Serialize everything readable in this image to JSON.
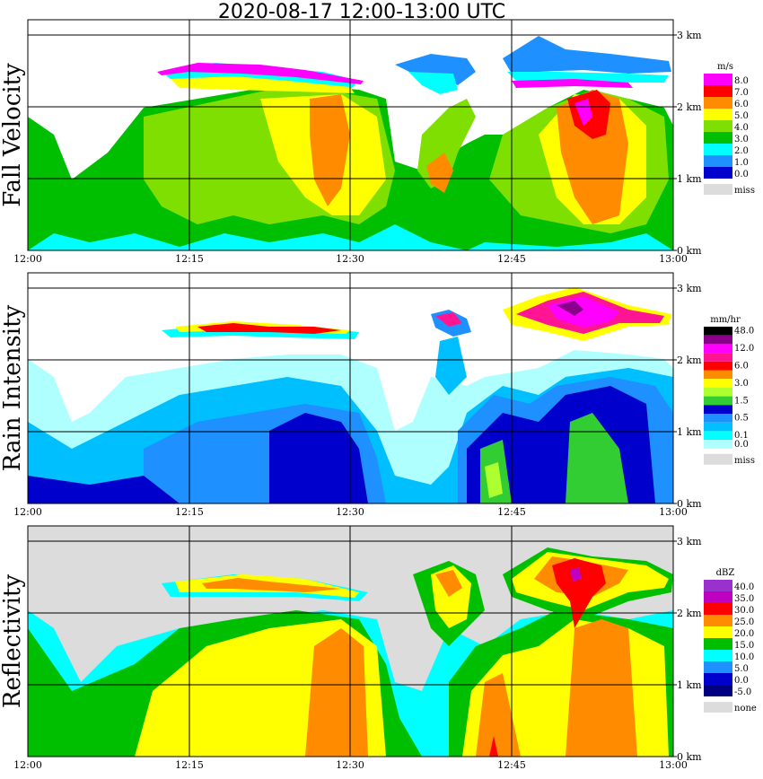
{
  "title": "2020-08-17   12:00-13:00 UTC",
  "chart_data": [
    {
      "type": "heatmap",
      "panel": "fall_velocity",
      "ylabel": "Fall Velocity",
      "unit": "m/s",
      "x_ticks": [
        "12:00",
        "12:15",
        "12:30",
        "12:45",
        "13:00"
      ],
      "y_ticks": [
        "0 km",
        "1 km",
        "2 km",
        "3 km"
      ],
      "xlim": [
        "12:00",
        "13:00"
      ],
      "ylim_km": [
        0,
        3.1
      ],
      "grid": true,
      "legend": [
        {
          "label": "8.0",
          "color": "#ff00ff"
        },
        {
          "label": "7.0",
          "color": "#ff0000"
        },
        {
          "label": "6.0",
          "color": "#ff8c00"
        },
        {
          "label": "5.0",
          "color": "#ffff00"
        },
        {
          "label": "4.0",
          "color": "#7fdf00"
        },
        {
          "label": "3.0",
          "color": "#00bf00"
        },
        {
          "label": "2.0",
          "color": "#00ffff"
        },
        {
          "label": "1.0",
          "color": "#1e90ff"
        },
        {
          "label": "0.0",
          "color": "#0000cc"
        },
        {
          "label": "miss",
          "color": "#dcdcdc"
        }
      ]
    },
    {
      "type": "heatmap",
      "panel": "rain_intensity",
      "ylabel": "Rain Intensity",
      "unit": "mm/hr",
      "x_ticks": [
        "12:00",
        "12:15",
        "12:30",
        "12:45",
        "13:00"
      ],
      "y_ticks": [
        "0 km",
        "1 km",
        "2 km",
        "3 km"
      ],
      "xlim": [
        "12:00",
        "13:00"
      ],
      "ylim_km": [
        0,
        3.1
      ],
      "grid": true,
      "legend": [
        {
          "label": "48.0",
          "color": "#000000"
        },
        {
          "label": "",
          "color": "#8b008b"
        },
        {
          "label": "12.0",
          "color": "#ff00ff"
        },
        {
          "label": "",
          "color": "#ff1493"
        },
        {
          "label": "6.0",
          "color": "#ff0000"
        },
        {
          "label": "",
          "color": "#ff8c00"
        },
        {
          "label": "3.0",
          "color": "#ffff00"
        },
        {
          "label": "",
          "color": "#adff2f"
        },
        {
          "label": "1.5",
          "color": "#32cd32"
        },
        {
          "label": "",
          "color": "#0000cd"
        },
        {
          "label": "0.5",
          "color": "#1e90ff"
        },
        {
          "label": "",
          "color": "#00bfff"
        },
        {
          "label": "0.1",
          "color": "#00ffff"
        },
        {
          "label": "0.0",
          "color": "#b0ffff"
        },
        {
          "label": "miss",
          "color": "#dcdcdc"
        }
      ]
    },
    {
      "type": "heatmap",
      "panel": "reflectivity",
      "ylabel": "Reflectivity",
      "unit": "dBZ",
      "x_ticks": [
        "12:00",
        "12:15",
        "12:30",
        "12:45",
        "13:00"
      ],
      "y_ticks": [
        "0 km",
        "1 km",
        "2 km",
        "3 km"
      ],
      "xlim": [
        "12:00",
        "13:00"
      ],
      "ylim_km": [
        0,
        3.1
      ],
      "grid": true,
      "legend": [
        {
          "label": "40.0",
          "color": "#9932cc"
        },
        {
          "label": "35.0",
          "color": "#c000c0"
        },
        {
          "label": "30.0",
          "color": "#ff0000"
        },
        {
          "label": "25.0",
          "color": "#ff8c00"
        },
        {
          "label": "20.0",
          "color": "#ffff00"
        },
        {
          "label": "15.0",
          "color": "#00bf00"
        },
        {
          "label": "10.0",
          "color": "#00ffff"
        },
        {
          "label": "5.0",
          "color": "#1e90ff"
        },
        {
          "label": "0.0",
          "color": "#0000cc"
        },
        {
          "label": "-5.0",
          "color": "#000080"
        },
        {
          "label": "none",
          "color": "#dcdcdc"
        }
      ]
    }
  ]
}
